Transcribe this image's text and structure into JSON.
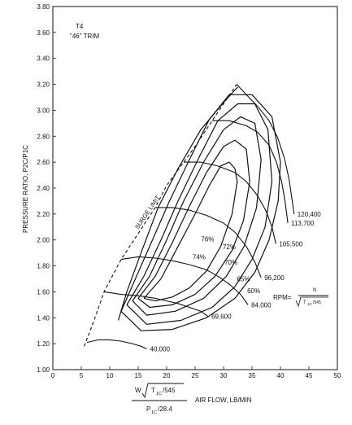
{
  "chart_data": {
    "type": "line",
    "title": "T4 \"46\" TRIM",
    "title_parts": {
      "t4": "T4",
      "trim": "\"46\" TRIM"
    },
    "xlabel": "AIR FLOW, LB/MIN",
    "ylabel": "PRESSURE RATIO, P2C/P1C",
    "xlim": [
      0,
      50
    ],
    "ylim": [
      1.0,
      3.8
    ],
    "xticks": [
      "0",
      "5",
      "10",
      "15",
      "20",
      "25",
      "30",
      "35",
      "40",
      "45",
      "50"
    ],
    "yticks": [
      "1.00",
      "1.20",
      "1.40",
      "1.60",
      "1.80",
      "2.00",
      "2.20",
      "2.40",
      "2.60",
      "2.80",
      "3.00",
      "3.20",
      "3.40",
      "3.60",
      "3.80"
    ],
    "grid": false,
    "flow_formula": {
      "numerator_w": "W",
      "numerator_t": "T",
      "numerator_t_sub": "1C",
      "numerator_t_rest": "/545",
      "denominator_p": "P",
      "denominator_p_sub": "1C",
      "denominator_rest": "/28.4"
    },
    "rpm_formula": {
      "label": "RPM=",
      "numerator": "N",
      "denominator_t": "T",
      "denominator_sub": "1C",
      "denominator_rest": "/545"
    },
    "surge_limit": {
      "label": "SURGE LIMIT",
      "points": [
        [
          5.5,
          1.18
        ],
        [
          7,
          1.35
        ],
        [
          9,
          1.6
        ],
        [
          12,
          1.85
        ],
        [
          15,
          2.05
        ],
        [
          18,
          2.25
        ],
        [
          20,
          2.42
        ],
        [
          23,
          2.6
        ],
        [
          25,
          2.72
        ],
        [
          28,
          2.92
        ],
        [
          30,
          3.05
        ],
        [
          32.3,
          3.2
        ]
      ]
    },
    "speed_lines": [
      {
        "label": "40,000",
        "points": [
          [
            6,
            1.21
          ],
          [
            8,
            1.23
          ],
          [
            10,
            1.23
          ],
          [
            12,
            1.22
          ],
          [
            14,
            1.2
          ],
          [
            15.5,
            1.18
          ],
          [
            16.5,
            1.16
          ]
        ]
      },
      {
        "label": "69,600",
        "points": [
          [
            9,
            1.6
          ],
          [
            12,
            1.58
          ],
          [
            15,
            1.57
          ],
          [
            18,
            1.55
          ],
          [
            20,
            1.53
          ],
          [
            22,
            1.51
          ],
          [
            24,
            1.48
          ],
          [
            26,
            1.45
          ],
          [
            27.3,
            1.41
          ]
        ]
      },
      {
        "label": "84,000",
        "points": [
          [
            12,
            1.85
          ],
          [
            15,
            1.87
          ],
          [
            18,
            1.86
          ],
          [
            21,
            1.84
          ],
          [
            24,
            1.81
          ],
          [
            27,
            1.77
          ],
          [
            29,
            1.72
          ],
          [
            31,
            1.66
          ],
          [
            33,
            1.58
          ],
          [
            34.3,
            1.5
          ]
        ]
      },
      {
        "label": "96,200",
        "points": [
          [
            18,
            2.25
          ],
          [
            21,
            2.25
          ],
          [
            24,
            2.23
          ],
          [
            27,
            2.19
          ],
          [
            30,
            2.13
          ],
          [
            32,
            2.06
          ],
          [
            34,
            1.95
          ],
          [
            35.5,
            1.83
          ],
          [
            36.6,
            1.71
          ]
        ]
      },
      {
        "label": "105,500",
        "points": [
          [
            23,
            2.6
          ],
          [
            26,
            2.6
          ],
          [
            29,
            2.57
          ],
          [
            32,
            2.52
          ],
          [
            34,
            2.45
          ],
          [
            36,
            2.34
          ],
          [
            37.5,
            2.22
          ],
          [
            38.5,
            2.1
          ],
          [
            39.2,
            1.97
          ]
        ]
      },
      {
        "label": "113,700",
        "points": [
          [
            28,
            2.92
          ],
          [
            31,
            2.92
          ],
          [
            34,
            2.88
          ],
          [
            36,
            2.83
          ],
          [
            38,
            2.73
          ],
          [
            39.3,
            2.6
          ],
          [
            40.2,
            2.45
          ],
          [
            40.8,
            2.3
          ],
          [
            41.3,
            2.13
          ]
        ]
      },
      {
        "label": "120,400",
        "points": [
          [
            32.3,
            3.2
          ],
          [
            34,
            3.12
          ],
          [
            36,
            3.03
          ],
          [
            38,
            2.92
          ],
          [
            39.5,
            2.79
          ],
          [
            40.7,
            2.63
          ],
          [
            41.5,
            2.47
          ],
          [
            42,
            2.32
          ],
          [
            42.4,
            2.2
          ]
        ]
      }
    ],
    "efficiency_islands": [
      {
        "label": "76%",
        "points": [
          [
            16,
            1.55
          ],
          [
            19,
            1.7
          ],
          [
            22,
            1.95
          ],
          [
            25,
            2.2
          ],
          [
            27.5,
            2.42
          ],
          [
            29.5,
            2.57
          ],
          [
            31,
            2.6
          ],
          [
            32,
            2.55
          ],
          [
            32.4,
            2.45
          ],
          [
            31.5,
            2.2
          ],
          [
            29.5,
            1.95
          ],
          [
            27,
            1.76
          ],
          [
            24,
            1.63
          ],
          [
            21,
            1.56
          ],
          [
            18,
            1.53
          ],
          [
            16,
            1.55
          ]
        ]
      },
      {
        "label": "74%",
        "points": [
          [
            15,
            1.55
          ],
          [
            18,
            1.72
          ],
          [
            21,
            1.98
          ],
          [
            24,
            2.26
          ],
          [
            27,
            2.52
          ],
          [
            30,
            2.72
          ],
          [
            32,
            2.77
          ],
          [
            34,
            2.7
          ],
          [
            34.6,
            2.45
          ],
          [
            33.5,
            2.15
          ],
          [
            31.5,
            1.92
          ],
          [
            28.5,
            1.72
          ],
          [
            25,
            1.58
          ],
          [
            21,
            1.5
          ],
          [
            17,
            1.48
          ],
          [
            15,
            1.55
          ]
        ]
      },
      {
        "label": "72%",
        "points": [
          [
            14,
            1.53
          ],
          [
            17,
            1.72
          ],
          [
            20,
            2.0
          ],
          [
            23,
            2.3
          ],
          [
            26.5,
            2.6
          ],
          [
            30,
            2.85
          ],
          [
            33,
            2.95
          ],
          [
            35.5,
            2.9
          ],
          [
            36.6,
            2.62
          ],
          [
            35.8,
            2.25
          ],
          [
            33.6,
            1.95
          ],
          [
            30.5,
            1.72
          ],
          [
            26.5,
            1.55
          ],
          [
            21.5,
            1.45
          ],
          [
            16.5,
            1.42
          ],
          [
            14,
            1.53
          ]
        ]
      },
      {
        "label": "70%",
        "points": [
          [
            13,
            1.5
          ],
          [
            16,
            1.72
          ],
          [
            19,
            2.0
          ],
          [
            22,
            2.3
          ],
          [
            25.5,
            2.62
          ],
          [
            29,
            2.92
          ],
          [
            32.5,
            3.05
          ],
          [
            35.5,
            3.05
          ],
          [
            37.8,
            2.85
          ],
          [
            38.5,
            2.45
          ],
          [
            37.3,
            2.1
          ],
          [
            35,
            1.85
          ],
          [
            32,
            1.64
          ],
          [
            28,
            1.48
          ],
          [
            22.5,
            1.38
          ],
          [
            16.5,
            1.35
          ],
          [
            13,
            1.5
          ]
        ]
      },
      {
        "label": "65%",
        "points": [
          [
            12,
            1.45
          ],
          [
            14,
            1.65
          ],
          [
            17,
            1.95
          ],
          [
            20.5,
            2.3
          ],
          [
            24,
            2.62
          ],
          [
            27.5,
            2.93
          ],
          [
            31,
            3.12
          ],
          [
            35,
            3.12
          ],
          [
            38.5,
            2.95
          ],
          [
            40,
            2.6
          ],
          [
            39.6,
            2.3
          ],
          [
            38,
            2.0
          ],
          [
            35.5,
            1.75
          ],
          [
            32,
            1.55
          ],
          [
            27,
            1.4
          ],
          [
            21,
            1.31
          ],
          [
            15.5,
            1.3
          ],
          [
            12,
            1.45
          ]
        ]
      },
      {
        "label": "60%",
        "points": [
          [
            11.5,
            1.38
          ],
          [
            13,
            1.6
          ],
          [
            15.5,
            1.9
          ],
          [
            18.5,
            2.25
          ],
          [
            22,
            2.55
          ],
          [
            26,
            2.85
          ],
          [
            30,
            3.06
          ],
          [
            32.5,
            3.18
          ]
        ]
      }
    ],
    "efficiency_label_positions": [
      {
        "label": "76%",
        "x": 27.2,
        "y": 1.99
      },
      {
        "label": "74%",
        "x": 25.7,
        "y": 1.85
      },
      {
        "label": "72%",
        "x": 31.0,
        "y": 1.93
      },
      {
        "label": "70%",
        "x": 31.3,
        "y": 1.81
      },
      {
        "label": "65%",
        "x": 33.5,
        "y": 1.68
      },
      {
        "label": "60%",
        "x": 35.3,
        "y": 1.59
      }
    ]
  }
}
